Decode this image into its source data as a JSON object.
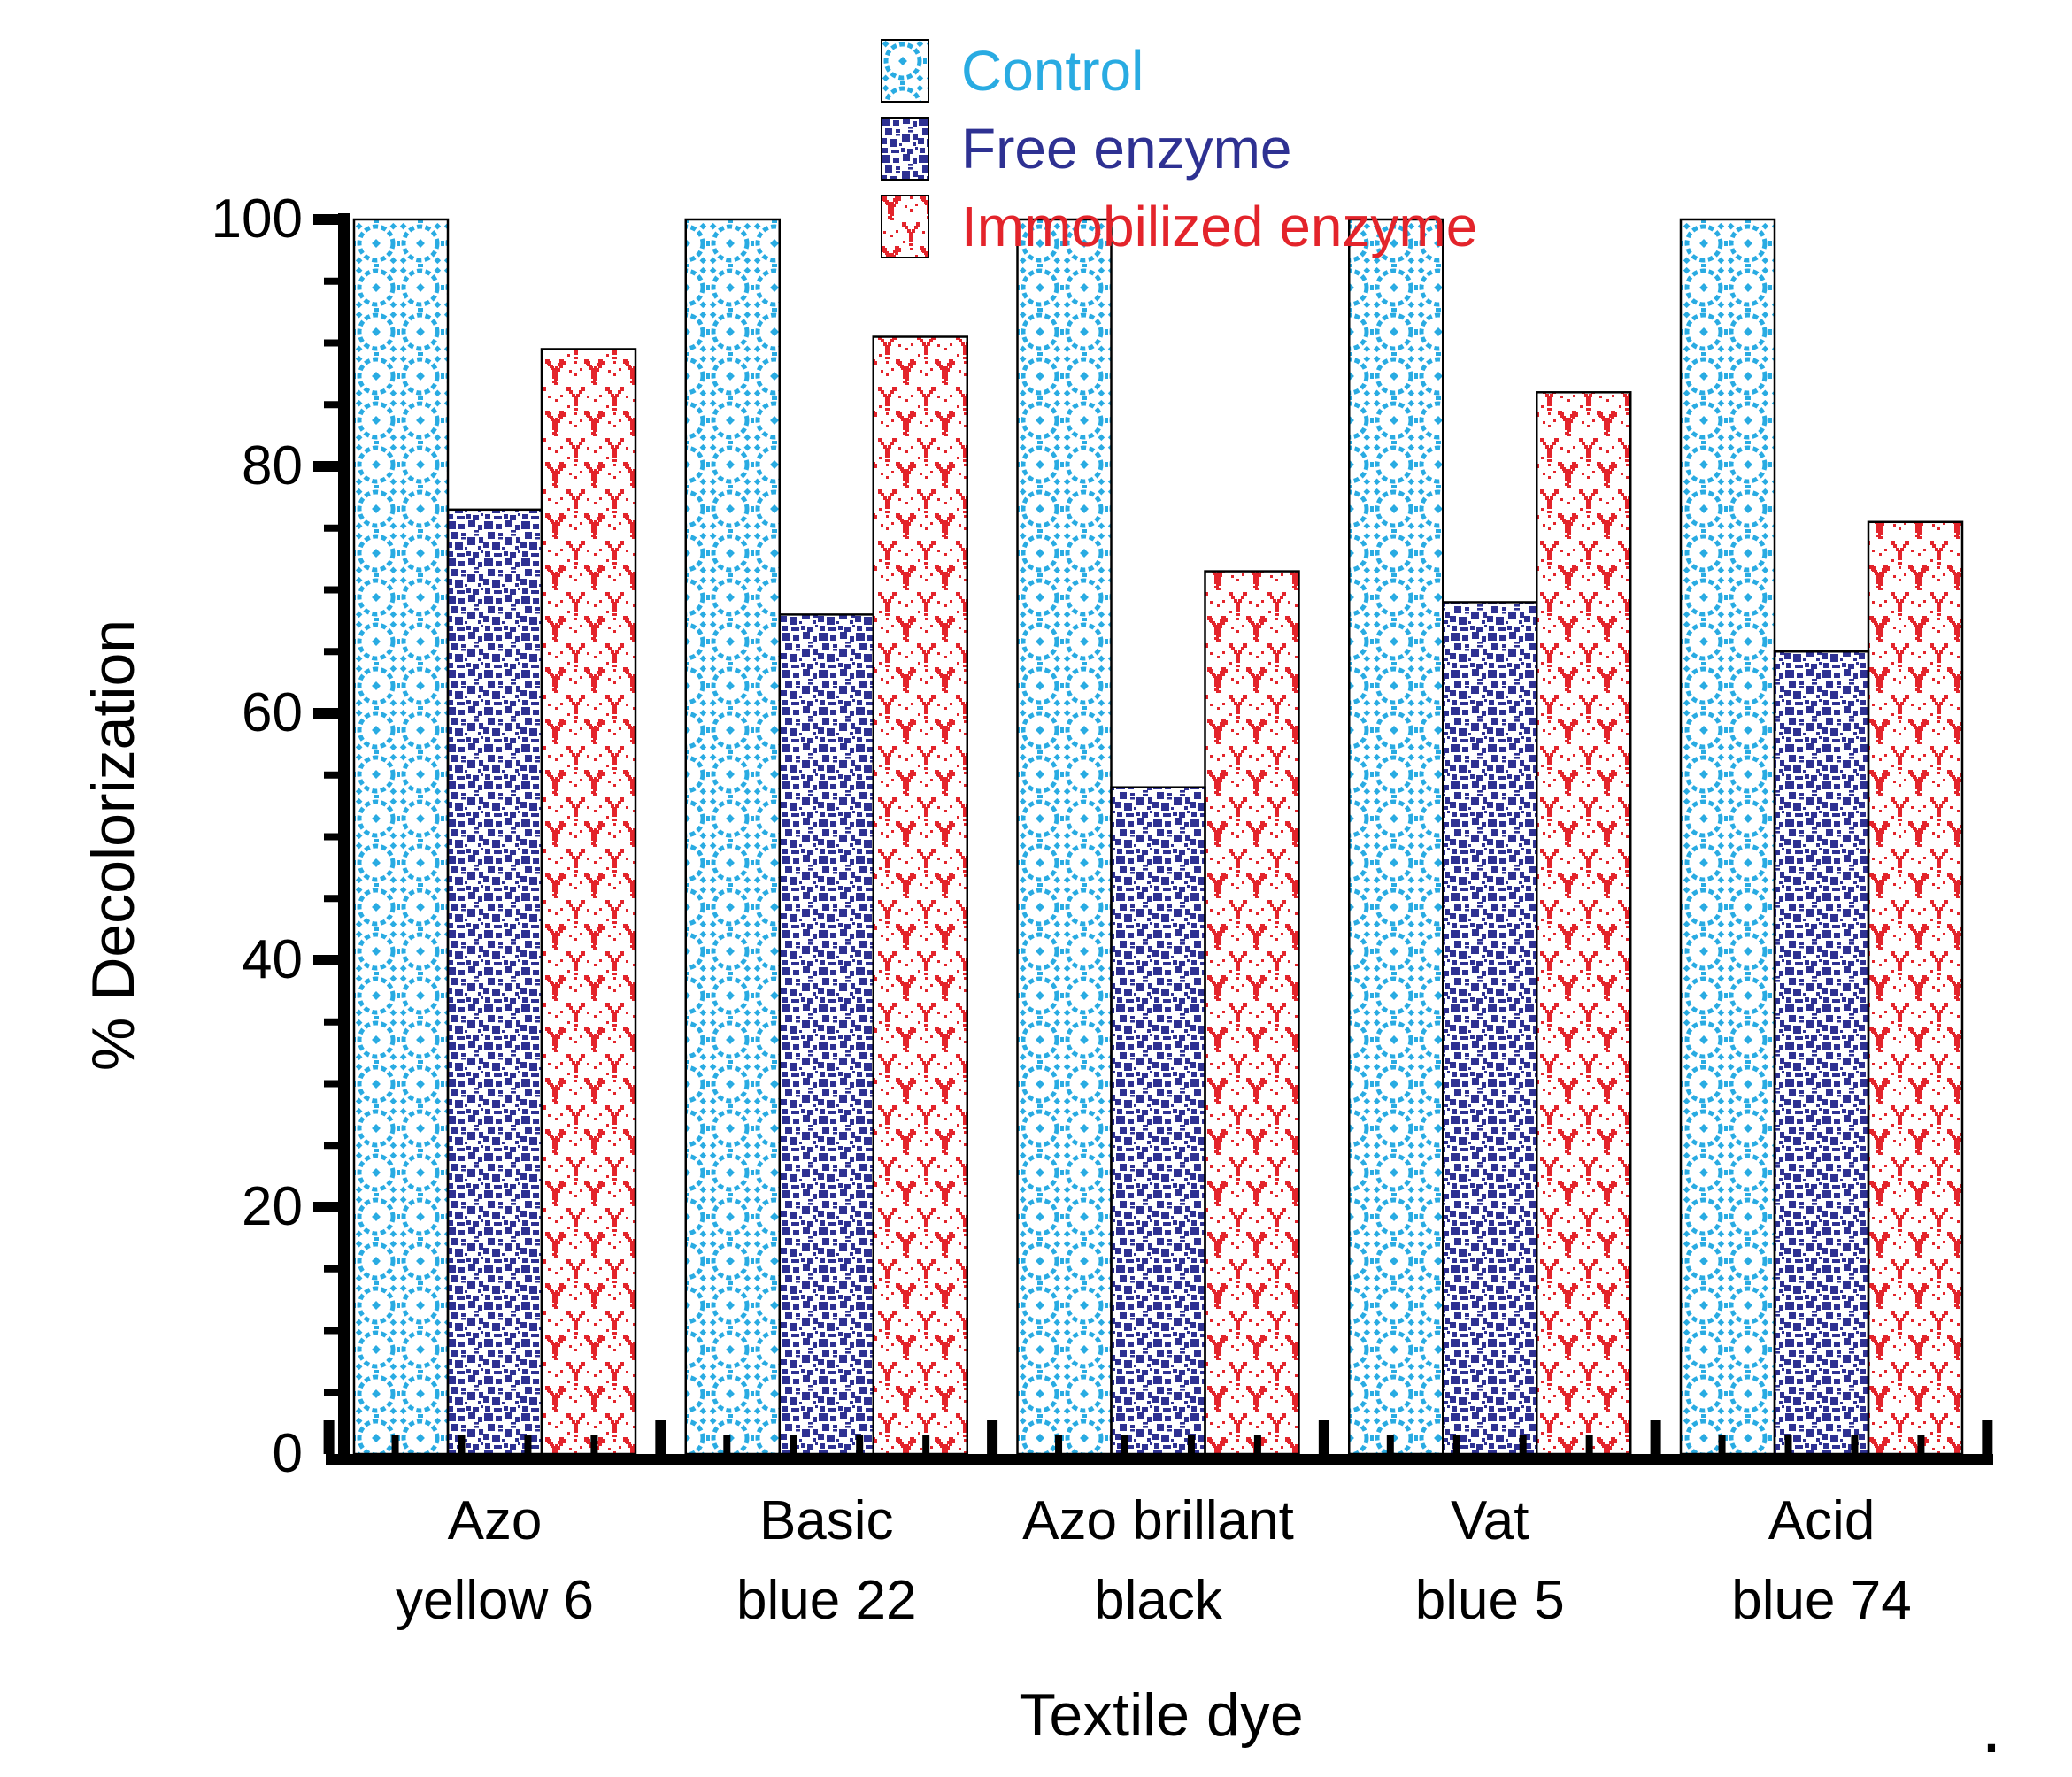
{
  "chart_data": {
    "type": "bar",
    "title": "",
    "xlabel": "Textile dye",
    "ylabel": "% Decolorization",
    "ylim": [
      0,
      100
    ],
    "yticks_major": [
      0,
      20,
      40,
      60,
      80,
      100
    ],
    "ytick_minor_step": 5,
    "grid": false,
    "legend_position": "top-center",
    "categories": [
      "Azo\nyellow 6",
      "Basic\nblue 22",
      "Azo brillant\nblack",
      "Vat\nblue 5",
      "Acid\nblue 74"
    ],
    "series": [
      {
        "name": "Control",
        "color": "#29ABE2",
        "pattern": "pattern-control",
        "values": [
          100,
          100,
          100,
          100,
          100
        ]
      },
      {
        "name": "Free enzyme",
        "color": "#2E3192",
        "pattern": "pattern-free",
        "values": [
          76.5,
          68,
          54,
          69,
          65
        ]
      },
      {
        "name": "Immobilized enzyme",
        "color": "#E3242B",
        "pattern": "pattern-immobilized",
        "values": [
          89.5,
          90.5,
          71.5,
          86,
          75.5
        ]
      }
    ]
  },
  "axis_color": "#000000",
  "misc": {
    "trailing_dot": "."
  }
}
